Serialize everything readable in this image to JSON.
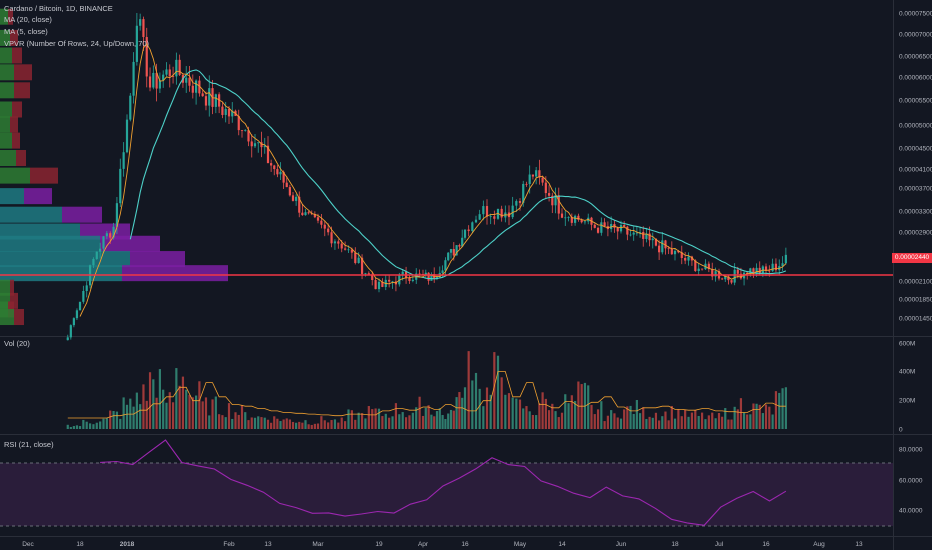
{
  "chart_title": "Cardano / Bitcoin, 1D, BINANCE",
  "indicators": {
    "ma20": "MA (20, close)",
    "ma5": "MA (5, close)",
    "vpvr": "VPVR (Number Of Rows, 24, Up/Down, 70)",
    "vol": "Vol (20)",
    "rsi": "RSI (21, close)"
  },
  "current_price_label": "0.00002440",
  "price_axis_ticks": [
    "0.00007500",
    "0.00007000",
    "0.00006500",
    "0.00006000",
    "0.00005500",
    "0.00005000",
    "0.00004500",
    "0.00004100",
    "0.00003700",
    "0.00003300",
    "0.00002900",
    "0.00002100",
    "0.00001850",
    "0.00001450"
  ],
  "volume_axis_ticks": [
    "600M",
    "400M",
    "200M",
    "0"
  ],
  "rsi_axis_ticks": [
    "80.0000",
    "60.0000",
    "40.0000"
  ],
  "time_axis_ticks": [
    "Dec",
    "18",
    "2018",
    "Feb",
    "13",
    "Mar",
    "19",
    "Apr",
    "16",
    "May",
    "14",
    "Jun",
    "18",
    "Jul",
    "16",
    "Aug",
    "13"
  ],
  "colors": {
    "background": "#131722",
    "up": "#26a69a",
    "down": "#ef5350",
    "ma20": "#4dd0c8",
    "ma5": "#f0a030",
    "support_line": "#f23645",
    "rsi_line": "#9c27b0",
    "rsi_band": "#2a1d3a",
    "vpvr_up": "#1f7a82",
    "vpvr_down": "#7b1fa2",
    "vpvr_up_low": "#2e7d32",
    "vpvr_down_low": "#8b2530"
  },
  "chart_data": [
    {
      "type": "candlestick",
      "title": "Cardano / Bitcoin, 1D, BINANCE",
      "price_axis": {
        "ticks": [
          "0.00007500",
          "0.00007000",
          "0.00006500",
          "0.00006000",
          "0.00005500",
          "0.00005000",
          "0.00004500",
          "0.00004100",
          "0.00003700",
          "0.00003300",
          "0.00002900",
          "0.00002100",
          "0.00001850",
          "0.00001450"
        ]
      },
      "price_path": [
        {
          "date": "2017-12-14",
          "close": 1.2e-05
        },
        {
          "date": "2017-12-18",
          "close": 1.8e-05
        },
        {
          "date": "2017-12-23",
          "close": 2.6e-05
        },
        {
          "date": "2017-12-28",
          "close": 3e-05
        },
        {
          "date": "2018-01-02",
          "close": 5.6e-05
        },
        {
          "date": "2018-01-04",
          "close": 7.5e-05
        },
        {
          "date": "2018-01-08",
          "close": 5.8e-05
        },
        {
          "date": "2018-01-15",
          "close": 6.2e-05
        },
        {
          "date": "2018-01-25",
          "close": 5.6e-05
        },
        {
          "date": "2018-02-05",
          "close": 5e-05
        },
        {
          "date": "2018-02-15",
          "close": 4.1e-05
        },
        {
          "date": "2018-02-25",
          "close": 3.2e-05
        },
        {
          "date": "2018-03-08",
          "close": 2.7e-05
        },
        {
          "date": "2018-03-19",
          "close": 2e-05
        },
        {
          "date": "2018-03-27",
          "close": 2.2e-05
        },
        {
          "date": "2018-04-04",
          "close": 2.15e-05
        },
        {
          "date": "2018-04-12",
          "close": 2.6e-05
        },
        {
          "date": "2018-04-20",
          "close": 3.3e-05
        },
        {
          "date": "2018-04-28",
          "close": 3.3e-05
        },
        {
          "date": "2018-05-05",
          "close": 4e-05
        },
        {
          "date": "2018-05-14",
          "close": 3.3e-05
        },
        {
          "date": "2018-05-24",
          "close": 3e-05
        },
        {
          "date": "2018-06-02",
          "close": 2.9e-05
        },
        {
          "date": "2018-06-14",
          "close": 2.65e-05
        },
        {
          "date": "2018-06-26",
          "close": 2.3e-05
        },
        {
          "date": "2018-07-04",
          "close": 2.15e-05
        },
        {
          "date": "2018-07-10",
          "close": 2.28e-05
        },
        {
          "date": "2018-07-16",
          "close": 2.25e-05
        },
        {
          "date": "2018-07-22",
          "close": 2.44e-05
        }
      ],
      "support_level": 2.22e-05,
      "last_price": "0.00002440"
    },
    {
      "type": "bar",
      "title": "Vol (20)",
      "y_ticks": [
        "600M",
        "400M",
        "200M",
        "0"
      ],
      "ylim": [
        0,
        650
      ],
      "series": [
        {
          "values": [
            30,
            60,
            80,
            130,
            210,
            300,
            420,
            250,
            480,
            300,
            200,
            180,
            150,
            120,
            100,
            90,
            80,
            70,
            60,
            80,
            70,
            120,
            150,
            130,
            170,
            140,
            200,
            160,
            120,
            250,
            620,
            300,
            480,
            200,
            160,
            240,
            180,
            230,
            300,
            170,
            120,
            160,
            180,
            140,
            130,
            150,
            120,
            110,
            100,
            140,
            220,
            180,
            160,
            260
          ]
        }
      ]
    },
    {
      "type": "line",
      "title": "RSI (21, close)",
      "y_ticks": [
        "80.0000",
        "60.0000",
        "40.0000"
      ],
      "ylim": [
        25,
        90
      ],
      "bands": [
        30,
        70
      ],
      "series": [
        {
          "values": [
            72,
            70,
            68,
            78,
            86,
            70,
            68,
            66,
            58,
            56,
            52,
            46,
            42,
            40,
            38,
            35,
            36,
            38,
            40,
            44,
            48,
            55,
            62,
            68,
            72,
            70,
            66,
            60,
            56,
            52,
            50,
            54,
            50,
            46,
            40,
            34,
            30,
            32,
            42,
            46,
            50,
            46,
            54
          ]
        }
      ]
    }
  ]
}
